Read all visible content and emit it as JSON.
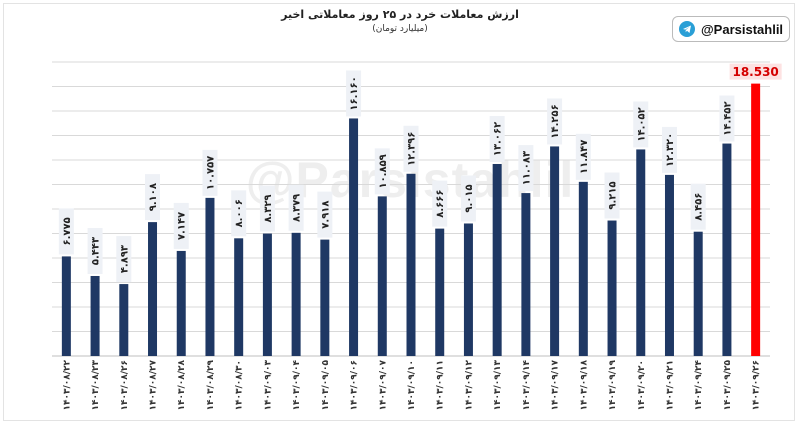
{
  "header": {
    "title": "ارزش معاملات خرد در ۲۵ روز معاملاتی اخیر",
    "subtitle": "(میلیارد تومان)",
    "brand_handle": "@Parsistahlil",
    "brand_icon": "telegram-icon",
    "watermark": "@Parsistahlil"
  },
  "chart_data": {
    "type": "bar",
    "title": "ارزش معاملات خرد در ۲۵ روز معاملاتی اخیر",
    "ylabel": "(میلیارد تومان)",
    "xlabel": "",
    "ylim": [
      0,
      20000
    ],
    "grid": true,
    "colors": {
      "default": "#1f3864",
      "highlight": "#ff0000",
      "label_bg": "#eef1f6",
      "highlight_label_bg": "#fde2e2"
    },
    "highlight_index": 24,
    "categories": [
      "۱۴۰۳/۰۸/۲۲",
      "۱۴۰۳/۰۸/۲۳",
      "۱۴۰۳/۰۸/۲۶",
      "۱۴۰۳/۰۸/۲۷",
      "۱۴۰۳/۰۸/۲۸",
      "۱۴۰۳/۰۸/۲۹",
      "۱۴۰۳/۰۸/۳۰",
      "۱۴۰۳/۰۹/۰۳",
      "۱۴۰۳/۰۹/۰۴",
      "۱۴۰۳/۰۹/۰۵",
      "۱۴۰۳/۰۹/۰۶",
      "۱۴۰۳/۰۹/۰۷",
      "۱۴۰۳/۰۹/۱۰",
      "۱۴۰۳/۰۹/۱۱",
      "۱۴۰۳/۰۹/۱۲",
      "۱۴۰۳/۰۹/۱۳",
      "۱۴۰۳/۰۹/۱۴",
      "۱۴۰۳/۰۹/۱۷",
      "۱۴۰۳/۰۹/۱۸",
      "۱۴۰۳/۰۹/۱۹",
      "۱۴۰۳/۰۹/۲۰",
      "۱۴۰۳/۰۹/۲۱",
      "۱۴۰۳/۰۹/۲۴",
      "۱۴۰۳/۰۹/۲۵",
      "۱۴۰۳/۰۹/۲۶"
    ],
    "values": [
      6775,
      5443,
      4893,
      9108,
      7147,
      10757,
      8006,
      8329,
      8379,
      7918,
      16160,
      10859,
      12396,
      8666,
      9015,
      13062,
      11083,
      14256,
      11847,
      9215,
      14052,
      12320,
      8456,
      14452,
      18530
    ],
    "value_labels": [
      "۶.۷۷۵",
      "۵.۴۴۳",
      "۴.۸۹۳",
      "۹.۱۰۸",
      "۷.۱۴۷",
      "۱۰.۷۵۷",
      "۸.۰۰۶",
      "۸.۳۲۹",
      "۸.۳۷۹",
      "۷.۹۱۸",
      "۱۶.۱۶۰",
      "۱۰.۸۵۹",
      "۱۲.۳۹۶",
      "۸.۶۶۶",
      "۹.۰۱۵",
      "۱۳.۰۶۲",
      "۱۱.۰۸۳",
      "۱۴.۲۵۶",
      "۱۱.۸۴۷",
      "۹.۲۱۵",
      "۱۴.۰۵۲",
      "۱۲.۳۲۰",
      "۸.۴۵۶",
      "۱۴.۴۵۲",
      "18.530"
    ]
  }
}
